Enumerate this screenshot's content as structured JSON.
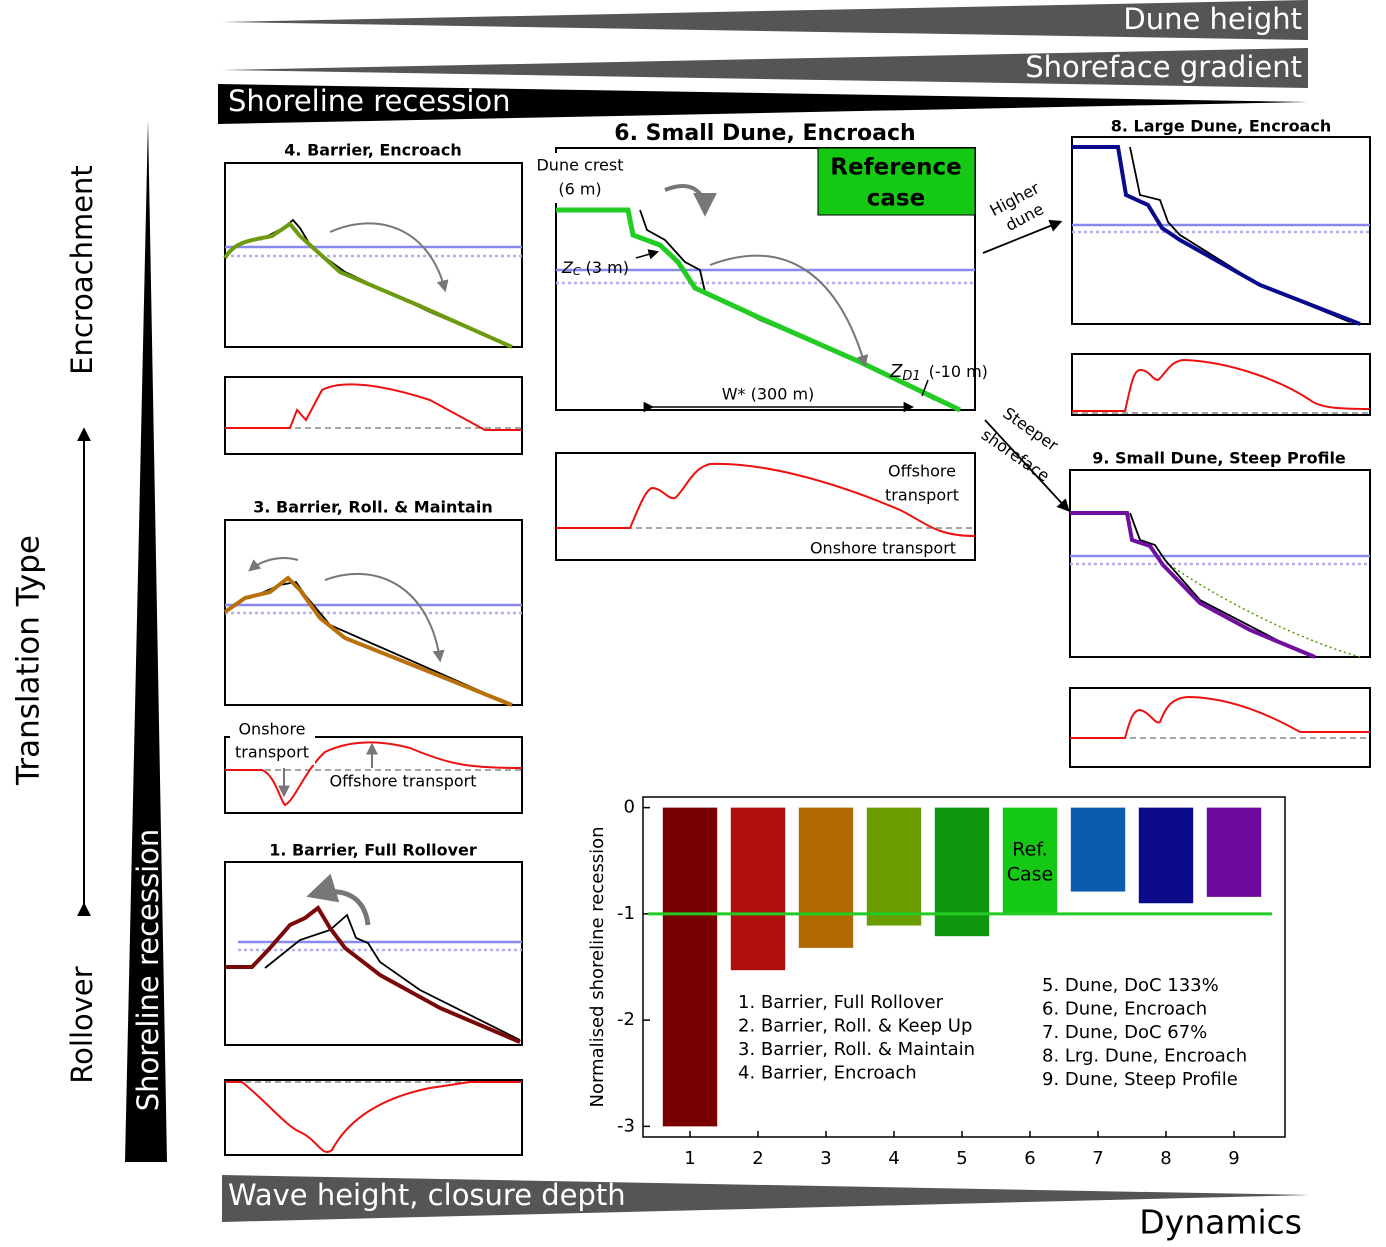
{
  "top_wedges": [
    "Dune height",
    "Shoreface gradient",
    "Shoreline recession"
  ],
  "left": {
    "translation": "Translation Type",
    "encroachment": "Encroachment",
    "rollover": "Rollover",
    "recession": "Shoreline recession"
  },
  "bottom": {
    "wedge": "Wave height, closure depth",
    "dynamics": "Dynamics"
  },
  "panels": {
    "p4": {
      "title": "4. Barrier, Encroach"
    },
    "p3": {
      "title": "3. Barrier, Roll. & Maintain",
      "onshore": [
        "Onshore",
        "transport"
      ],
      "offshore": "Offshore transport"
    },
    "p1": {
      "title": "1. Barrier, Full Rollover"
    },
    "p6": {
      "title": "6. Small Dune, Encroach",
      "reference": [
        "Reference",
        "case"
      ],
      "dune_crest": [
        "Dune crest",
        "(6 m)"
      ],
      "zc": {
        "symbol": "Z",
        "subscript": "C",
        "text": "(3 m)"
      },
      "zd1": {
        "symbol": "Z",
        "subscript": "D1",
        "text": "(-10 m)"
      },
      "w": "W* (300 m)",
      "offshore": [
        "Offshore",
        "transport"
      ],
      "onshore": "Onshore transport"
    },
    "p8": {
      "title": "8. Large Dune, Encroach"
    },
    "p9": {
      "title": "9. Small Dune, Steep Profile"
    }
  },
  "arrows": {
    "higher": [
      "Higher",
      "dune"
    ],
    "steeper": [
      "Steeper",
      "shoreface"
    ]
  },
  "chart_data": {
    "type": "bar",
    "ylabel": "Normalised shoreline recession",
    "categories": [
      "1",
      "2",
      "3",
      "4",
      "5",
      "6",
      "7",
      "8",
      "9"
    ],
    "values": [
      -3.0,
      -1.53,
      -1.32,
      -1.11,
      -1.21,
      -1.0,
      -0.79,
      -0.9,
      -0.84
    ],
    "colors": [
      "#780000",
      "#b00d0d",
      "#b06800",
      "#6a9c00",
      "#0f960f",
      "#16c816",
      "#0a5cae",
      "#0a0a8a",
      "#6c0aa0"
    ],
    "ylim": [
      -3.1,
      0.1
    ],
    "yticks": [
      -3,
      -2,
      -1,
      0
    ],
    "reference_line": {
      "value": -1,
      "color": "#22cc22"
    },
    "bar_annotation": {
      "index": 5,
      "lines": [
        "Ref.",
        "Case"
      ]
    },
    "legend_left": [
      "1. Barrier, Full Rollover",
      "2. Barrier, Roll. & Keep Up",
      "3. Barrier, Roll. & Maintain",
      "4. Barrier, Encroach"
    ],
    "legend_right": [
      "5. Dune, DoC 133%",
      "6. Dune, Encroach",
      "7. Dune, DoC 67%",
      "8. Lrg. Dune, Encroach",
      "9. Dune, Steep Profile"
    ]
  }
}
